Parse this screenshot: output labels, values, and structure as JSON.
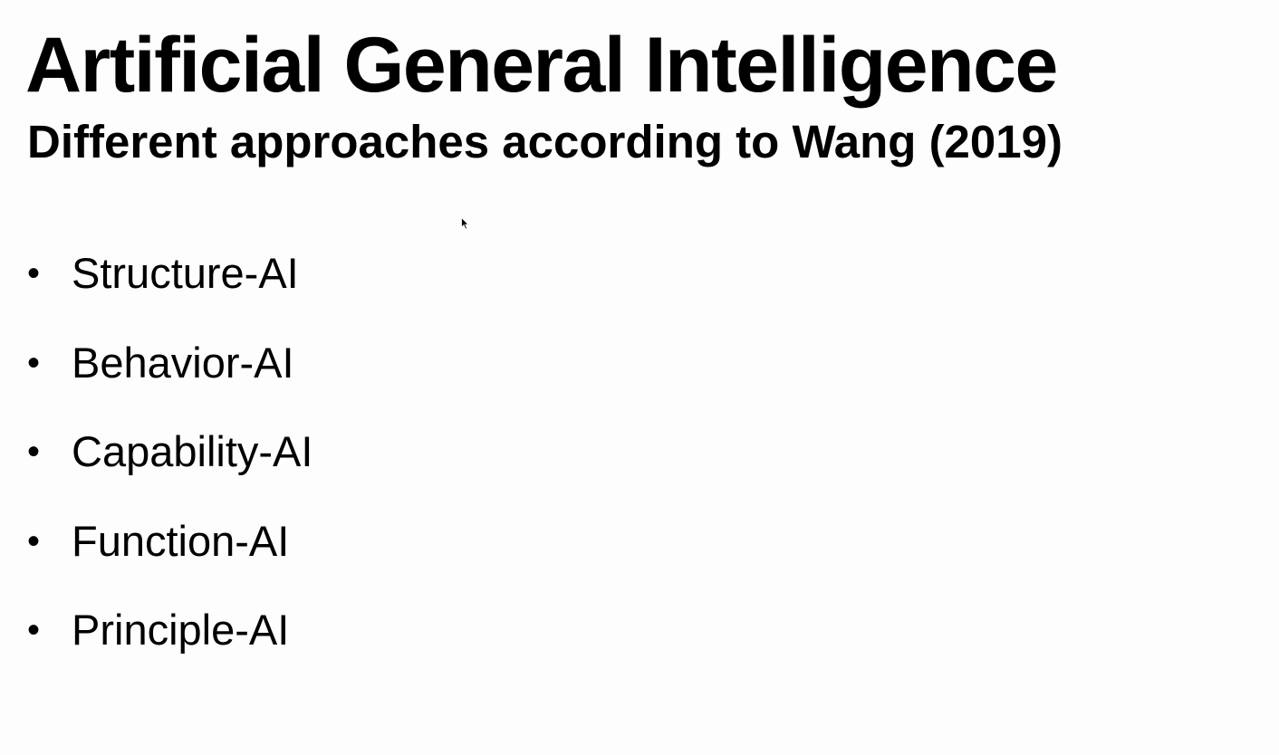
{
  "slide": {
    "title": "Artificial General Intelligence",
    "subtitle": "Different approaches according to Wang (2019)",
    "bullet_glyph": "•",
    "bullets": [
      "Structure-AI",
      "Behavior-AI",
      "Capability-AI",
      "Function-AI",
      "Principle-AI"
    ]
  },
  "cursor": {
    "icon": "mouse-pointer-icon"
  },
  "colors": {
    "background": "#fdfdfd",
    "text": "#000000"
  }
}
